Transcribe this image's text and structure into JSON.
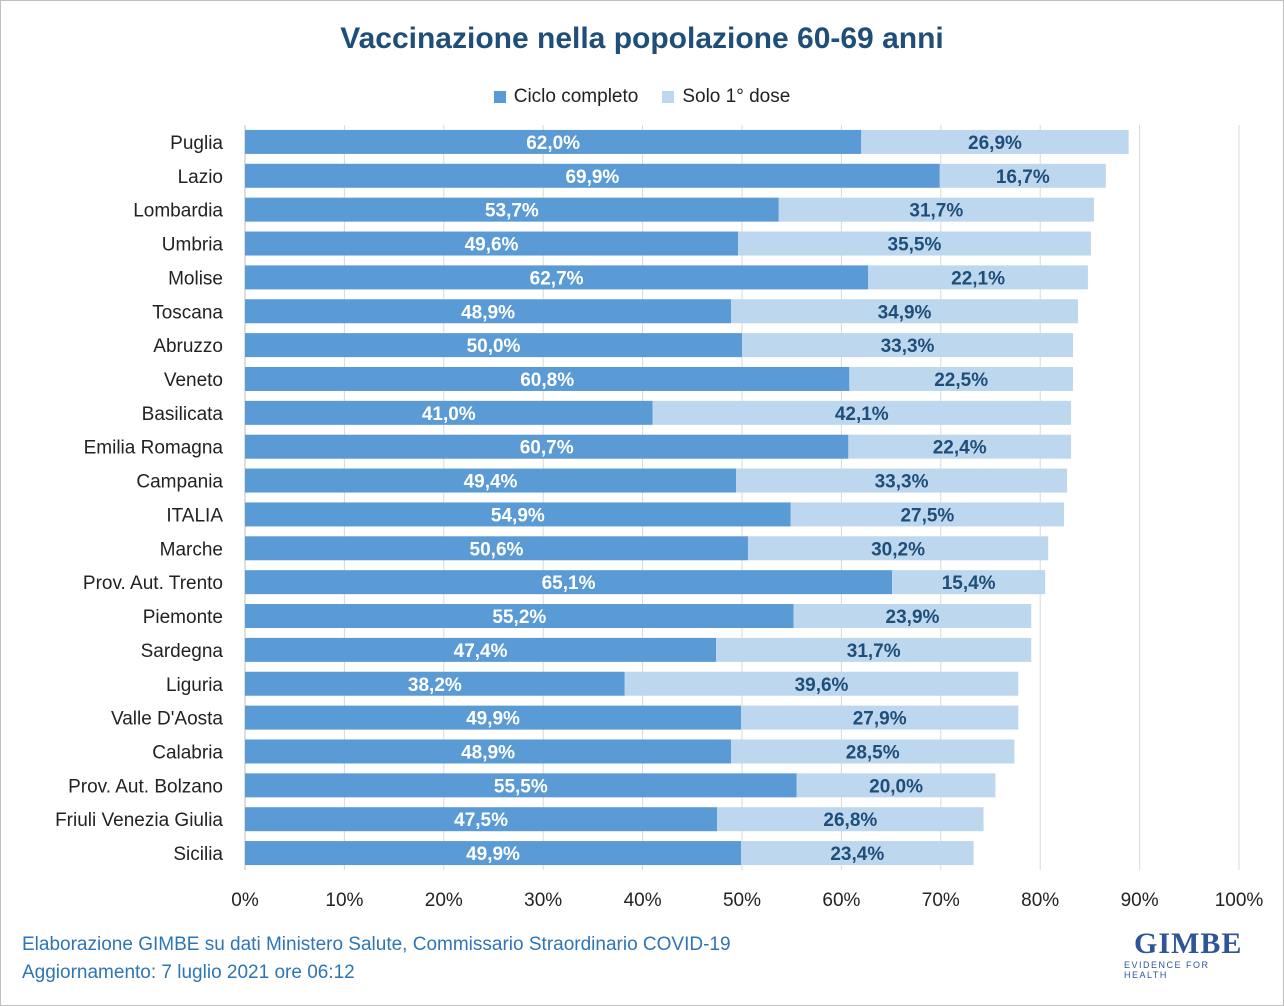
{
  "title": "Vaccinazione nella popolazione 60-69 anni",
  "footer": {
    "line1": "Elaborazione GIMBE su dati Ministero Salute, Commissario Straordinario COVID-19",
    "line2": "Aggiornamento: 7 luglio 2021 ore 06:12"
  },
  "logo": {
    "name": "GIMBE",
    "tagline": "EVIDENCE FOR HEALTH"
  },
  "chart_data": {
    "type": "bar",
    "orientation": "horizontal",
    "stacked": true,
    "title": "Vaccinazione nella popolazione 60-69 anni",
    "xlabel": "",
    "ylabel": "",
    "xlim": [
      0,
      100
    ],
    "x_ticks": [
      "0%",
      "10%",
      "20%",
      "30%",
      "40%",
      "50%",
      "60%",
      "70%",
      "80%",
      "90%",
      "100%"
    ],
    "grid": "vertical",
    "legend_position": "top",
    "categories": [
      "Puglia",
      "Lazio",
      "Lombardia",
      "Umbria",
      "Molise",
      "Toscana",
      "Abruzzo",
      "Veneto",
      "Basilicata",
      "Emilia Romagna",
      "Campania",
      "ITALIA",
      "Marche",
      "Prov. Aut. Trento",
      "Piemonte",
      "Sardegna",
      "Liguria",
      "Valle D'Aosta",
      "Calabria",
      "Prov. Aut. Bolzano",
      "Friuli Venezia Giulia",
      "Sicilia"
    ],
    "series": [
      {
        "name": "Ciclo completo",
        "color": "#5b9bd5",
        "label_color": "#ffffff",
        "values": [
          62.0,
          69.9,
          53.7,
          49.6,
          62.7,
          48.9,
          50.0,
          60.8,
          41.0,
          60.7,
          49.4,
          54.9,
          50.6,
          65.1,
          55.2,
          47.4,
          38.2,
          49.9,
          48.9,
          55.5,
          47.5,
          49.9
        ],
        "labels": [
          "62,0%",
          "69,9%",
          "53,7%",
          "49,6%",
          "62,7%",
          "48,9%",
          "50,0%",
          "60,8%",
          "41,0%",
          "60,7%",
          "49,4%",
          "54,9%",
          "50,6%",
          "65,1%",
          "55,2%",
          "47,4%",
          "38,2%",
          "49,9%",
          "48,9%",
          "55,5%",
          "47,5%",
          "49,9%"
        ]
      },
      {
        "name": "Solo 1° dose",
        "color": "#bdd7ee",
        "label_color": "#1f4e79",
        "values": [
          26.9,
          16.7,
          31.7,
          35.5,
          22.1,
          34.9,
          33.3,
          22.5,
          42.1,
          22.4,
          33.3,
          27.5,
          30.2,
          15.4,
          23.9,
          31.7,
          39.6,
          27.9,
          28.5,
          20.0,
          26.8,
          23.4
        ],
        "labels": [
          "26,9%",
          "16,7%",
          "31,7%",
          "35,5%",
          "22,1%",
          "34,9%",
          "33,3%",
          "22,5%",
          "42,1%",
          "22,4%",
          "33,3%",
          "27,5%",
          "30,2%",
          "15,4%",
          "23,9%",
          "31,7%",
          "39,6%",
          "27,9%",
          "28,5%",
          "20,0%",
          "26,8%",
          "23,4%"
        ]
      }
    ]
  }
}
